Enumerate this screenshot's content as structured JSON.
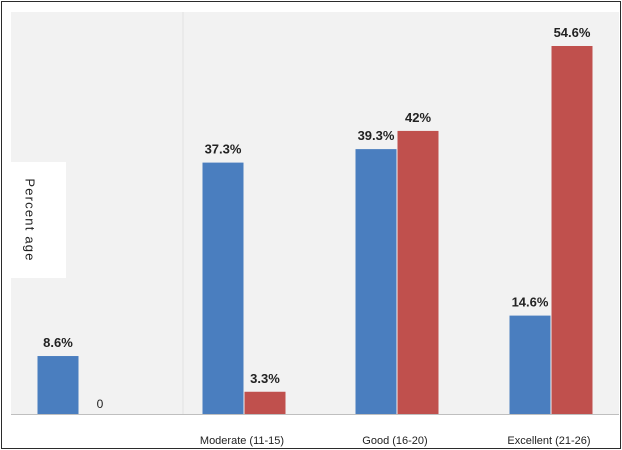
{
  "chart_data": {
    "type": "bar",
    "ylabel": "Percent age",
    "categories": [
      "",
      "Moderate (11-15)",
      "Good (16-20)",
      "Excellent (21-26)"
    ],
    "series": [
      {
        "values": [
          8.6,
          37.3,
          39.3,
          14.6
        ],
        "labels": [
          "8.6%",
          "37.3%",
          "39.3%",
          "14.6%"
        ],
        "color": "#4a7ebf"
      },
      {
        "values": [
          0,
          3.3,
          42,
          54.6
        ],
        "labels": [
          "0",
          "3.3%",
          "42%",
          "54.6%"
        ],
        "color": "#c0504d"
      }
    ],
    "ylim": [
      0,
      60
    ],
    "grid": false,
    "legend": "none"
  }
}
